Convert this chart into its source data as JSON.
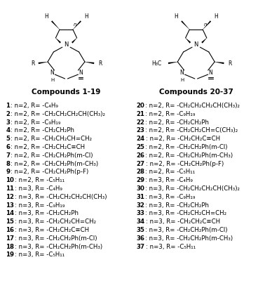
{
  "title_left": "Compounds 1-19",
  "title_right": "Compounds 20-37",
  "compounds_left": [
    [
      "1",
      ": n=2, R= -C₄H₉"
    ],
    [
      "2",
      ": n=2, R= -CH₂CH₂CH₂CH(CH₃)₂"
    ],
    [
      "3",
      ": n=2, R= -C₉H₁₉"
    ],
    [
      "4",
      ": n=2, R= -CH₂CH₂Ph"
    ],
    [
      "5",
      ": n=2, R= -CH₂CH₂CH=CH₂"
    ],
    [
      "6",
      ": n=2, R= -CH₂CH₂C≡CH"
    ],
    [
      "7",
      ": n=2, R= -CH₂CH₂Ph(m-Cl)"
    ],
    [
      "8",
      ": n=2, R= -CH₂CH₂Ph(m-CH₃)"
    ],
    [
      "9",
      ": n=2, R= -CH₂CH₂Ph(p-F)"
    ],
    [
      "10",
      ": n=2, R= -C₅H₁₁"
    ],
    [
      "11",
      ": n=3, R= -C₄H₉"
    ],
    [
      "12",
      ": n=3, R= -CH₂CH₂CH₂CH(CH₃)"
    ],
    [
      "13",
      ": n=3, R= -C₉H₁₉"
    ],
    [
      "14",
      ": n=3, R= -CH₂CH₂Ph"
    ],
    [
      "15",
      ": n=3, R= -CH₂CH₂CH=CH₂"
    ],
    [
      "16",
      ": n=3, R= -CH₂CH₂C≡CH"
    ],
    [
      "17",
      ": n=3, R= -CH₂CH₂Ph(m-Cl)"
    ],
    [
      "18",
      ": n=3, R= -CH₂CH₂Ph(m-CH₃)"
    ],
    [
      "19",
      ": n=3, R= -C₅H₁₁"
    ]
  ],
  "compounds_right": [
    [
      "20",
      ": n=2, R= -CH₂CH₂CH₂CH(CH₃)₂"
    ],
    [
      "21",
      ": n=2, R= -C₉H₁₉"
    ],
    [
      "22",
      ": n=2, R= -CH₂CH₂Ph"
    ],
    [
      "23",
      ": n=2, R= -CH₂CH₂CH=C(CH₃)₂"
    ],
    [
      "24",
      ": n=2, R= -CH₂CH₂C≡CH"
    ],
    [
      "25",
      ": n=2, R= -CH₂CH₂Ph(m-Cl)"
    ],
    [
      "26",
      ": n=2, R= -CH₂CH₂Ph(m-CH₃)"
    ],
    [
      "27",
      ": n=2, R= -CH₂CH₂Ph(p-F)"
    ],
    [
      "28",
      ": n=2, R= -C₅H₁₁"
    ],
    [
      "29",
      ": n=3, R= -C₄H₉"
    ],
    [
      "30",
      ": n=3, R= -CH₂CH₂CH₂CH(CH₃)₂"
    ],
    [
      "31",
      ": n=3, R= -C₉H₁₉"
    ],
    [
      "32",
      ": n=3, R= -CH₂CH₂Ph"
    ],
    [
      "33",
      ": n=3, R= -CH₂CH₂CH=CH₂"
    ],
    [
      "34",
      ": n=3, R= -CH₂CH₂C≡CH"
    ],
    [
      "35",
      ": n=3, R= -CH₂CH₂Ph(m-Cl)"
    ],
    [
      "36",
      ": n=3, R= -CH₂CH₂Ph(m-CH₃)"
    ],
    [
      "37",
      ": n=3, R= -C₅H₁₁"
    ]
  ],
  "bg_color": "#ffffff",
  "text_color": "#000000",
  "font_size": 6.2,
  "title_font_size": 7.5
}
